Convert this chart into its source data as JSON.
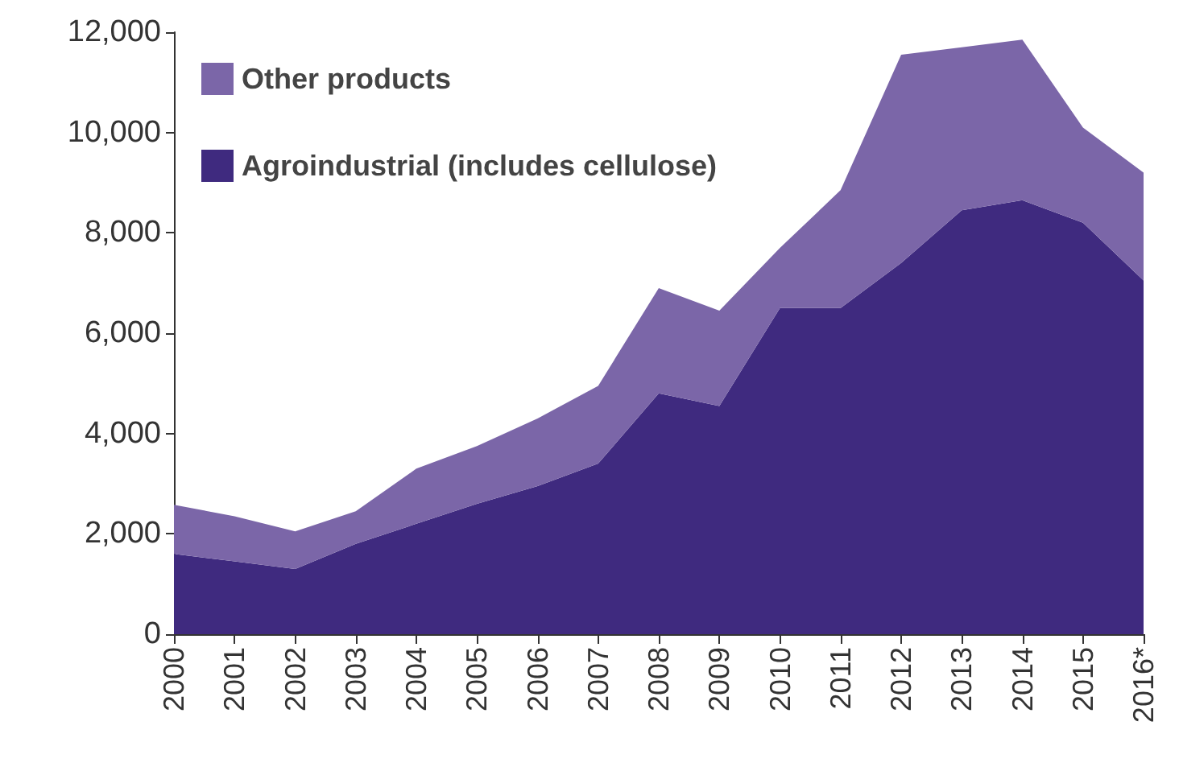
{
  "chart_data": {
    "type": "area",
    "stacked": true,
    "categories": [
      "2000",
      "2001",
      "2002",
      "2003",
      "2004",
      "2005",
      "2006",
      "2007",
      "2008",
      "2009",
      "2010",
      "2011",
      "2012",
      "2013",
      "2014",
      "2015",
      "2016*"
    ],
    "series": [
      {
        "name": "Agroindustrial (includes cellulose)",
        "color": "#3f2a7f",
        "values": [
          1600,
          1450,
          1300,
          1800,
          2200,
          2600,
          2950,
          3400,
          4800,
          4550,
          6500,
          6500,
          7400,
          8450,
          8650,
          8200,
          7050
        ]
      },
      {
        "name": "Other products",
        "color": "#7b66a8",
        "values": [
          980,
          900,
          750,
          650,
          1100,
          1150,
          1350,
          1550,
          2100,
          1900,
          1200,
          2350,
          4150,
          3250,
          3200,
          1900,
          2150
        ]
      }
    ],
    "ylim": [
      0,
      12000
    ],
    "yticks": [
      0,
      {
        "value": 2000,
        "label": "2,000"
      },
      {
        "value": 4000,
        "label": "4,000"
      },
      {
        "value": 6000,
        "label": "6,000"
      },
      {
        "value": 8000,
        "label": "8,000"
      },
      {
        "value": 10000,
        "label": "10,000"
      },
      {
        "value": 12000,
        "label": "12,000"
      }
    ],
    "grid": false,
    "legend": "top left",
    "marker": "none"
  }
}
